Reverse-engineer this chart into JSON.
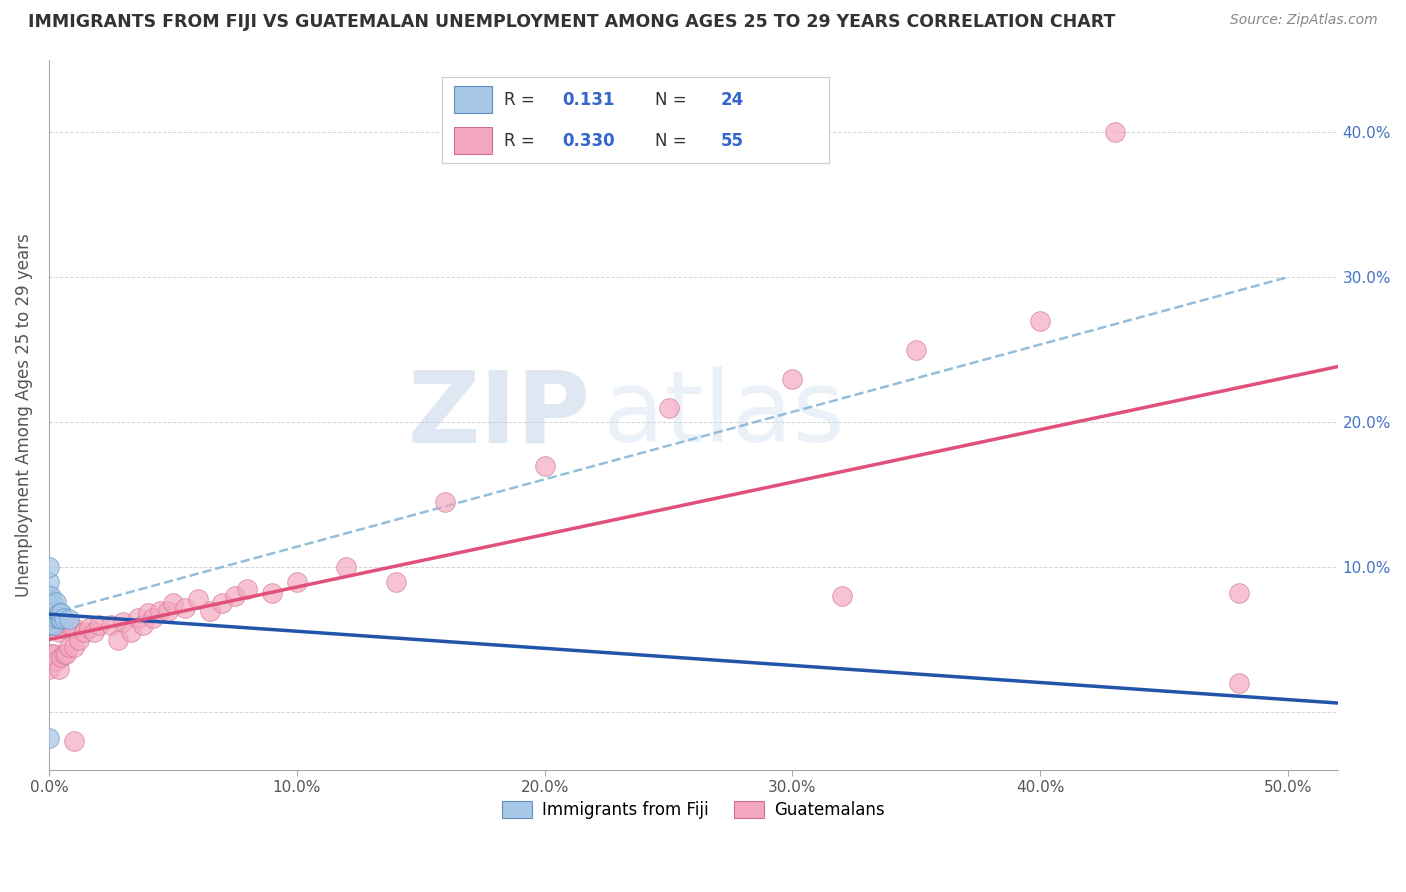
{
  "title": "IMMIGRANTS FROM FIJI VS GUATEMALAN UNEMPLOYMENT AMONG AGES 25 TO 29 YEARS CORRELATION CHART",
  "source": "Source: ZipAtlas.com",
  "ylabel": "Unemployment Among Ages 25 to 29 years",
  "xlim": [
    0.0,
    0.52
  ],
  "ylim": [
    -0.04,
    0.45
  ],
  "xticks": [
    0.0,
    0.1,
    0.2,
    0.3,
    0.4,
    0.5
  ],
  "yticks": [
    0.0,
    0.1,
    0.2,
    0.3,
    0.4
  ],
  "xtick_labels": [
    "0.0%",
    "10.0%",
    "20.0%",
    "30.0%",
    "40.0%",
    "50.0%"
  ],
  "ytick_labels_right": [
    "",
    "10.0%",
    "20.0%",
    "30.0%",
    "40.0%"
  ],
  "fiji_color": "#a8c8e8",
  "fiji_edge": "#6090c0",
  "fiji_line_color": "#2255aa",
  "fiji_dash_color": "#88b8d8",
  "guatemalan_color": "#f4a8c0",
  "guatemalan_edge": "#d07090",
  "guatemalan_line_color": "#e0507a",
  "background_color": "#ffffff",
  "grid_color": "#cccccc",
  "watermark_zip": "ZIP",
  "watermark_atlas": "atlas",
  "fiji_R": 0.131,
  "fiji_N": 24,
  "guatemalan_R": 0.33,
  "guatemalan_N": 55,
  "fiji_scatter_x": [
    0.0,
    0.0,
    0.0,
    0.0,
    0.0,
    0.0,
    0.0,
    0.001,
    0.001,
    0.001,
    0.001,
    0.002,
    0.002,
    0.002,
    0.003,
    0.003,
    0.003,
    0.004,
    0.004,
    0.005,
    0.005,
    0.006,
    0.008,
    0.0
  ],
  "fiji_scatter_y": [
    0.06,
    0.07,
    0.08,
    0.09,
    0.1,
    0.065,
    0.075,
    0.065,
    0.072,
    0.08,
    0.068,
    0.068,
    0.074,
    0.06,
    0.065,
    0.07,
    0.076,
    0.065,
    0.068,
    0.064,
    0.068,
    0.065,
    0.064,
    -0.018
  ],
  "guatemalan_scatter_x": [
    0.0,
    0.0,
    0.001,
    0.001,
    0.002,
    0.002,
    0.003,
    0.003,
    0.004,
    0.004,
    0.005,
    0.005,
    0.006,
    0.007,
    0.008,
    0.008,
    0.01,
    0.01,
    0.012,
    0.014,
    0.016,
    0.018,
    0.02,
    0.025,
    0.028,
    0.03,
    0.033,
    0.036,
    0.038,
    0.04,
    0.042,
    0.045,
    0.048,
    0.05,
    0.055,
    0.06,
    0.065,
    0.07,
    0.075,
    0.08,
    0.09,
    0.1,
    0.12,
    0.14,
    0.16,
    0.2,
    0.25,
    0.3,
    0.35,
    0.4,
    0.43,
    0.48,
    0.01,
    0.32,
    0.48
  ],
  "guatemalan_scatter_y": [
    0.03,
    0.06,
    0.04,
    0.06,
    0.04,
    0.06,
    0.035,
    0.06,
    0.03,
    0.055,
    0.038,
    0.058,
    0.04,
    0.04,
    0.045,
    0.06,
    0.045,
    0.058,
    0.05,
    0.055,
    0.058,
    0.055,
    0.06,
    0.06,
    0.05,
    0.062,
    0.055,
    0.065,
    0.06,
    0.068,
    0.065,
    0.07,
    0.07,
    0.075,
    0.072,
    0.078,
    0.07,
    0.075,
    0.08,
    0.085,
    0.082,
    0.09,
    0.1,
    0.09,
    0.145,
    0.17,
    0.21,
    0.23,
    0.25,
    0.27,
    0.4,
    0.02,
    -0.02,
    0.08,
    0.082
  ]
}
